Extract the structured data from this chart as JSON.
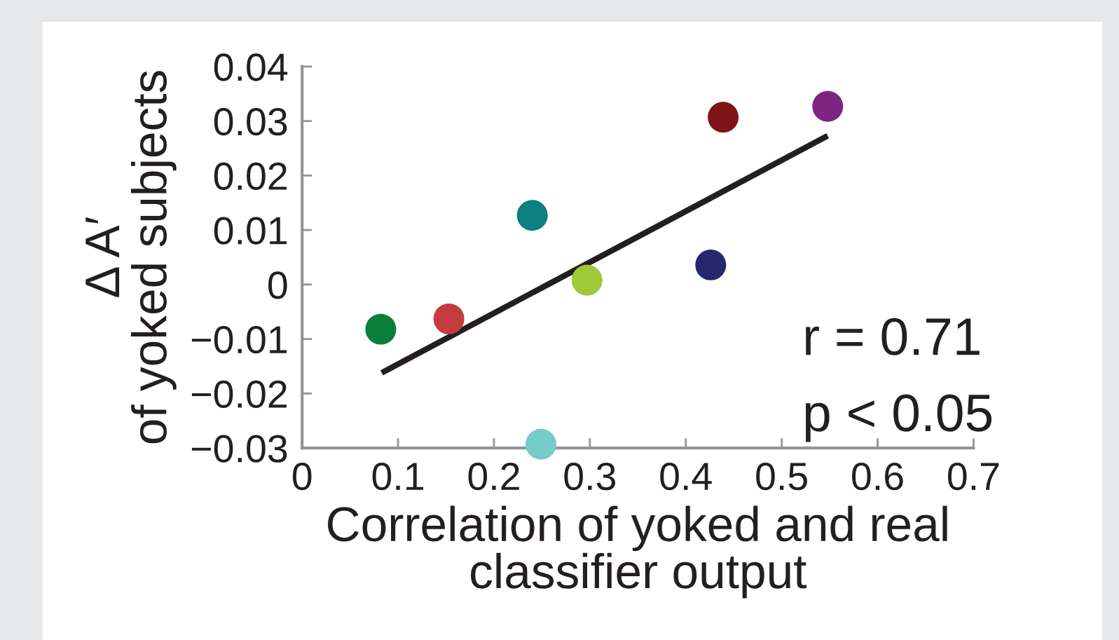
{
  "chart_data": {
    "type": "scatter",
    "xlabel": "Correlation of yoked and real\nclassifier output",
    "ylabel": "Δ A′\nof yoked subjects",
    "xlim": [
      0,
      0.7
    ],
    "xticks": [
      0,
      0.1,
      0.2,
      0.3,
      0.4,
      0.5,
      0.6,
      0.7
    ],
    "ylim": [
      -0.03,
      0.04
    ],
    "yticks": [
      {
        "value": -0.03,
        "label": "−0.03"
      },
      {
        "value": -0.02,
        "label": "−0.02"
      },
      {
        "value": -0.01,
        "label": "−0.01"
      },
      0,
      0.01,
      0.02,
      0.03,
      0.04
    ],
    "grid": false,
    "legend": false,
    "series": [
      {
        "marker": "circle",
        "x": [
          0.082,
          0.153,
          0.24,
          0.249,
          0.297,
          0.426,
          0.439,
          0.548
        ],
        "values": [
          -0.0082,
          -0.0063,
          0.0127,
          -0.0293,
          0.0008,
          0.0036,
          0.0307,
          0.0327
        ],
        "colors": [
          "#0a7f3b",
          "#c43c3c",
          "#0b7f82",
          "#76cbcb",
          "#a0c93a",
          "#25286e",
          "#7e1416",
          "#7d2581"
        ]
      },
      {
        "type": "line",
        "x": [
          0.083,
          0.548
        ],
        "values": [
          -0.0162,
          0.0273
        ],
        "color": "#231f20",
        "line_style": "solid",
        "marker": "none"
      }
    ],
    "annotations": [
      "r = 0.71",
      "p < 0.05"
    ]
  }
}
